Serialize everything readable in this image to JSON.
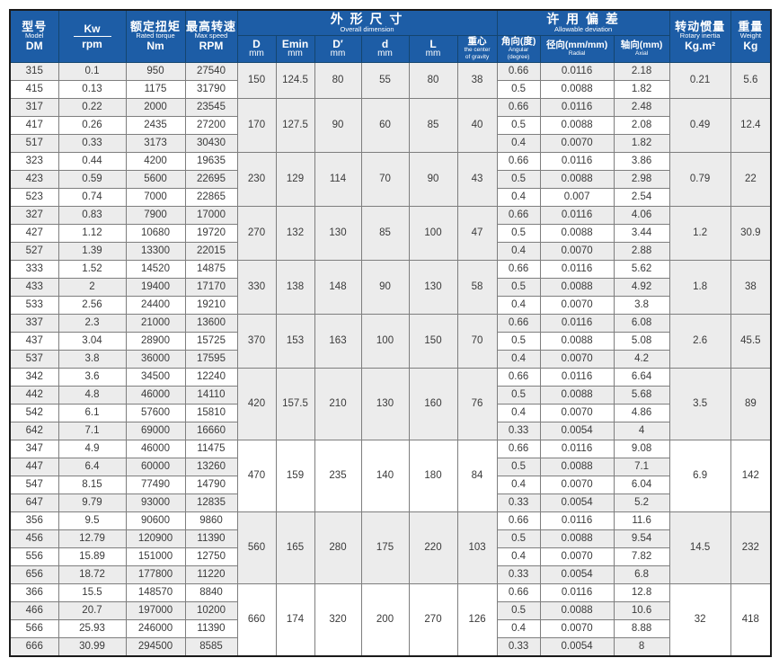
{
  "colors": {
    "header_bg": "#1d5da6",
    "header_text": "#ffffff",
    "row_shade": "#ececec",
    "grid_line": "#7e7e7e",
    "outer_border": "#1a1a1a"
  },
  "table": {
    "header": {
      "model": {
        "zh": "型号",
        "en": "Model",
        "unit": "DM"
      },
      "kw": {
        "top": "Kw",
        "bottom": "rpm"
      },
      "torque": {
        "zh": "额定扭矩",
        "en": "Rated torque",
        "unit": "Nm"
      },
      "speed": {
        "zh": "最高转速",
        "en": "Max speed",
        "unit": "RPM"
      },
      "overall": {
        "zh": "外 形 尺 寸",
        "en": "Overall dimension"
      },
      "dims": [
        {
          "l1": "D",
          "l2": "mm"
        },
        {
          "l1": "Emin",
          "l2": "mm"
        },
        {
          "l1": "D′",
          "l2": "mm"
        },
        {
          "l1": "d",
          "l2": "mm"
        },
        {
          "l1": "L",
          "l2": "mm"
        },
        {
          "l1": "重心",
          "l2": "the center",
          "l3": "of gravity"
        }
      ],
      "deviation": {
        "zh": "许 用 偏 差",
        "en": "Allowable deviation"
      },
      "dev_cols": [
        {
          "l1": "角向(度)",
          "l2": "Angular",
          "l3": "(degree)"
        },
        {
          "l1": "径向(mm/mm)",
          "l2": "Radial",
          "l3": ""
        },
        {
          "l1": "轴向(mm)",
          "l2": "Axial",
          "l3": ""
        }
      ],
      "inertia": {
        "zh": "转动惯量",
        "en": "Rotary inertia",
        "unit": "Kg.m²"
      },
      "weight": {
        "zh": "重量",
        "en": "Weight",
        "unit": "Kg"
      }
    },
    "groups": [
      {
        "dims": [
          "150",
          "124.5",
          "80",
          "55",
          "80",
          "38"
        ],
        "inertia": "0.21",
        "weight": "5.6",
        "rows": [
          {
            "model": "315",
            "kw": "0.1",
            "torque": "950",
            "speed": "27540",
            "dev": [
              "0.66",
              "0.0116",
              "2.18"
            ]
          },
          {
            "model": "415",
            "kw": "0.13",
            "torque": "1175",
            "speed": "31790",
            "dev": [
              "0.5",
              "0.0088",
              "1.82"
            ]
          }
        ]
      },
      {
        "dims": [
          "170",
          "127.5",
          "90",
          "60",
          "85",
          "40"
        ],
        "inertia": "0.49",
        "weight": "12.4",
        "rows": [
          {
            "model": "317",
            "kw": "0.22",
            "torque": "2000",
            "speed": "23545",
            "dev": [
              "0.66",
              "0.0116",
              "2.48"
            ]
          },
          {
            "model": "417",
            "kw": "0.26",
            "torque": "2435",
            "speed": "27200",
            "dev": [
              "0.5",
              "0.0088",
              "2.08"
            ]
          },
          {
            "model": "517",
            "kw": "0.33",
            "torque": "3173",
            "speed": "30430",
            "dev": [
              "0.4",
              "0.0070",
              "1.82"
            ]
          }
        ]
      },
      {
        "dims": [
          "230",
          "129",
          "114",
          "70",
          "90",
          "43"
        ],
        "inertia": "0.79",
        "weight": "22",
        "rows": [
          {
            "model": "323",
            "kw": "0.44",
            "torque": "4200",
            "speed": "19635",
            "dev": [
              "0.66",
              "0.0116",
              "3.86"
            ]
          },
          {
            "model": "423",
            "kw": "0.59",
            "torque": "5600",
            "speed": "22695",
            "dev": [
              "0.5",
              "0.0088",
              "2.98"
            ]
          },
          {
            "model": "523",
            "kw": "0.74",
            "torque": "7000",
            "speed": "22865",
            "dev": [
              "0.4",
              "0.007",
              "2.54"
            ]
          }
        ]
      },
      {
        "dims": [
          "270",
          "132",
          "130",
          "85",
          "100",
          "47"
        ],
        "inertia": "1.2",
        "weight": "30.9",
        "rows": [
          {
            "model": "327",
            "kw": "0.83",
            "torque": "7900",
            "speed": "17000",
            "dev": [
              "0.66",
              "0.0116",
              "4.06"
            ]
          },
          {
            "model": "427",
            "kw": "1.12",
            "torque": "10680",
            "speed": "19720",
            "dev": [
              "0.5",
              "0.0088",
              "3.44"
            ]
          },
          {
            "model": "527",
            "kw": "1.39",
            "torque": "13300",
            "speed": "22015",
            "dev": [
              "0.4",
              "0.0070",
              "2.88"
            ]
          }
        ]
      },
      {
        "dims": [
          "330",
          "138",
          "148",
          "90",
          "130",
          "58"
        ],
        "inertia": "1.8",
        "weight": "38",
        "rows": [
          {
            "model": "333",
            "kw": "1.52",
            "torque": "14520",
            "speed": "14875",
            "dev": [
              "0.66",
              "0.0116",
              "5.62"
            ]
          },
          {
            "model": "433",
            "kw": "2",
            "torque": "19400",
            "speed": "17170",
            "dev": [
              "0.5",
              "0.0088",
              "4.92"
            ]
          },
          {
            "model": "533",
            "kw": "2.56",
            "torque": "24400",
            "speed": "19210",
            "dev": [
              "0.4",
              "0.0070",
              "3.8"
            ]
          }
        ]
      },
      {
        "dims": [
          "370",
          "153",
          "163",
          "100",
          "150",
          "70"
        ],
        "inertia": "2.6",
        "weight": "45.5",
        "rows": [
          {
            "model": "337",
            "kw": "2.3",
            "torque": "21000",
            "speed": "13600",
            "dev": [
              "0.66",
              "0.0116",
              "6.08"
            ]
          },
          {
            "model": "437",
            "kw": "3.04",
            "torque": "28900",
            "speed": "15725",
            "dev": [
              "0.5",
              "0.0088",
              "5.08"
            ]
          },
          {
            "model": "537",
            "kw": "3.8",
            "torque": "36000",
            "speed": "17595",
            "dev": [
              "0.4",
              "0.0070",
              "4.2"
            ]
          }
        ]
      },
      {
        "dims": [
          "420",
          "157.5",
          "210",
          "130",
          "160",
          "76"
        ],
        "inertia": "3.5",
        "weight": "89",
        "rows": [
          {
            "model": "342",
            "kw": "3.6",
            "torque": "34500",
            "speed": "12240",
            "dev": [
              "0.66",
              "0.0116",
              "6.64"
            ]
          },
          {
            "model": "442",
            "kw": "4.8",
            "torque": "46000",
            "speed": "14110",
            "dev": [
              "0.5",
              "0.0088",
              "5.68"
            ]
          },
          {
            "model": "542",
            "kw": "6.1",
            "torque": "57600",
            "speed": "15810",
            "dev": [
              "0.4",
              "0.0070",
              "4.86"
            ]
          },
          {
            "model": "642",
            "kw": "7.1",
            "torque": "69000",
            "speed": "16660",
            "dev": [
              "0.33",
              "0.0054",
              "4"
            ]
          }
        ]
      },
      {
        "dims": [
          "470",
          "159",
          "235",
          "140",
          "180",
          "84"
        ],
        "inertia": "6.9",
        "weight": "142",
        "rows": [
          {
            "model": "347",
            "kw": "4.9",
            "torque": "46000",
            "speed": "11475",
            "dev": [
              "0.66",
              "0.0116",
              "9.08"
            ]
          },
          {
            "model": "447",
            "kw": "6.4",
            "torque": "60000",
            "speed": "13260",
            "dev": [
              "0.5",
              "0.0088",
              "7.1"
            ]
          },
          {
            "model": "547",
            "kw": "8.15",
            "torque": "77490",
            "speed": "14790",
            "dev": [
              "0.4",
              "0.0070",
              "6.04"
            ]
          },
          {
            "model": "647",
            "kw": "9.79",
            "torque": "93000",
            "speed": "12835",
            "dev": [
              "0.33",
              "0.0054",
              "5.2"
            ]
          }
        ]
      },
      {
        "dims": [
          "560",
          "165",
          "280",
          "175",
          "220",
          "103"
        ],
        "inertia": "14.5",
        "weight": "232",
        "rows": [
          {
            "model": "356",
            "kw": "9.5",
            "torque": "90600",
            "speed": "9860",
            "dev": [
              "0.66",
              "0.0116",
              "11.6"
            ]
          },
          {
            "model": "456",
            "kw": "12.79",
            "torque": "120900",
            "speed": "11390",
            "dev": [
              "0.5",
              "0.0088",
              "9.54"
            ]
          },
          {
            "model": "556",
            "kw": "15.89",
            "torque": "151000",
            "speed": "12750",
            "dev": [
              "0.4",
              "0.0070",
              "7.82"
            ]
          },
          {
            "model": "656",
            "kw": "18.72",
            "torque": "177800",
            "speed": "11220",
            "dev": [
              "0.33",
              "0.0054",
              "6.8"
            ]
          }
        ]
      },
      {
        "dims": [
          "660",
          "174",
          "320",
          "200",
          "270",
          "126"
        ],
        "inertia": "32",
        "weight": "418",
        "rows": [
          {
            "model": "366",
            "kw": "15.5",
            "torque": "148570",
            "speed": "8840",
            "dev": [
              "0.66",
              "0.0116",
              "12.8"
            ]
          },
          {
            "model": "466",
            "kw": "20.7",
            "torque": "197000",
            "speed": "10200",
            "dev": [
              "0.5",
              "0.0088",
              "10.6"
            ]
          },
          {
            "model": "566",
            "kw": "25.93",
            "torque": "246000",
            "speed": "11390",
            "dev": [
              "0.4",
              "0.0070",
              "8.88"
            ]
          },
          {
            "model": "666",
            "kw": "30.99",
            "torque": "294500",
            "speed": "8585",
            "dev": [
              "0.33",
              "0.0054",
              "8"
            ]
          }
        ]
      }
    ]
  }
}
